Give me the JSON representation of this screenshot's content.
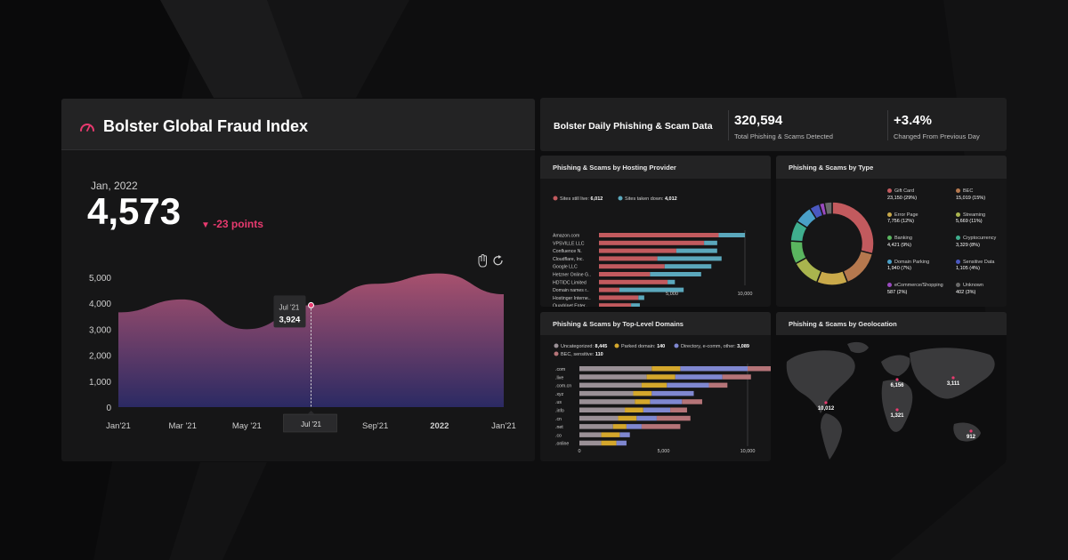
{
  "main": {
    "title": "Bolster Global Fraud Index",
    "period": "Jan, 2022",
    "value": "4,573",
    "delta": "-23 points",
    "tooltip": {
      "label": "Jul '21",
      "value": "3,924"
    },
    "cursor_label": "Jul '21"
  },
  "summary": {
    "title": "Bolster Daily Phishing & Scam Data",
    "total_value": "320,594",
    "total_label": "Total Phishing & Scams Detected",
    "change_value": "+3.4%",
    "change_label": "Changed From Previous Day"
  },
  "panels": {
    "hosting": "Phishing & Scams by Hosting Provider",
    "type": "Phishing & Scams by Type",
    "tld": "Phishing & Scams by Top-Level Domains",
    "geo": "Phishing & Scams by Geolocation"
  },
  "colors": {
    "accent": "#e83a6f",
    "live": "#c25a5e",
    "down": "#5ba8bc"
  },
  "chart_data": [
    {
      "type": "area",
      "x": [
        "Jan'21",
        "Mar '21",
        "May '21",
        "Jul '21",
        "Sep'21",
        "2022",
        "Jan'21"
      ],
      "ylim": [
        0,
        5000
      ],
      "yticks": [
        "5,000",
        "4,000",
        "3,000",
        "2,000",
        "1,000",
        "0"
      ],
      "y": [
        3650,
        4150,
        3000,
        3924,
        4750,
        5150,
        4350
      ],
      "highlight": {
        "x": "Jul '21",
        "y": 3924
      }
    },
    {
      "type": "bar",
      "legend": [
        {
          "label": "Sites still live:",
          "value": "6,012",
          "color": "#c25a5e"
        },
        {
          "label": "Sites taken down:",
          "value": "4,012",
          "color": "#5ba8bc"
        }
      ],
      "categories": [
        "Amazon.com",
        "VPSVILLE LLC",
        "Confluence N.",
        "Cloudflare, Inc.",
        "Google LLC",
        "Hetzner Online G..",
        "HDTIDC Limited",
        "Domain names r..",
        "Hostinger Interne..",
        "Quadrinet Enter.."
      ],
      "series": [
        {
          "values": [
            8200,
            7200,
            5300,
            4000,
            4500,
            3500,
            4700,
            1400,
            2700,
            2200
          ]
        },
        {
          "values": [
            1800,
            900,
            2800,
            4400,
            3200,
            3500,
            500,
            4400,
            400,
            600
          ]
        }
      ],
      "xticks": [
        "5,000",
        "10,000"
      ],
      "xlim": [
        0,
        10000
      ]
    },
    {
      "type": "pie",
      "slices": [
        {
          "label": "Gift Card",
          "value": "23,150 (29%)",
          "pct": 29,
          "color": "#c25a5e"
        },
        {
          "label": "BEC",
          "value": "15,019 (15%)",
          "pct": 15,
          "color": "#b5784e"
        },
        {
          "label": "Error Page",
          "value": "7,756 (12%)",
          "pct": 12,
          "color": "#c9a94a"
        },
        {
          "label": "Streaming",
          "value": "5,669 (11%)",
          "pct": 11,
          "color": "#a9b44e"
        },
        {
          "label": "Banking",
          "value": "4,421 (9%)",
          "pct": 9,
          "color": "#5ab55f"
        },
        {
          "label": "Cryptocurrency",
          "value": "3,329 (8%)",
          "pct": 8,
          "color": "#3fae8e"
        },
        {
          "label": "Domain Parking",
          "value": "1,940 (7%)",
          "pct": 7,
          "color": "#4aa0c8"
        },
        {
          "label": "Sensitive Data",
          "value": "1,105 (4%)",
          "pct": 4,
          "color": "#4a58c0"
        },
        {
          "label": "eCommerce/Shopping",
          "value": "587 (2%)",
          "pct": 2,
          "color": "#9a4ac0"
        },
        {
          "label": "Unknown",
          "value": "402 (3%)",
          "pct": 3,
          "color": "#6a6a6a"
        }
      ]
    },
    {
      "type": "bar",
      "legend": [
        {
          "label": "Uncategorized:",
          "value": "8,445",
          "color": "#9a9096"
        },
        {
          "label": "Parked domain:",
          "value": "140",
          "color": "#d4a72c"
        },
        {
          "label": "Directory, e-comm, other:",
          "value": "3,089",
          "color": "#7f87d0"
        },
        {
          "label": "BEC, sensitive:",
          "value": "110",
          "color": "#b57478"
        }
      ],
      "categories": [
        ".com",
        ".live",
        ".com.cn",
        ".xyz",
        ".us",
        ".info",
        ".cn",
        ".net",
        ".co",
        ".online"
      ],
      "series": [
        {
          "values": [
            4300,
            4000,
            3700,
            3200,
            3300,
            2700,
            2300,
            2000,
            1300,
            1300
          ]
        },
        {
          "values": [
            1700,
            1700,
            1500,
            1100,
            900,
            1100,
            1100,
            800,
            1100,
            900
          ]
        },
        {
          "values": [
            4000,
            2800,
            2500,
            2500,
            1900,
            1600,
            1200,
            900,
            600,
            600
          ]
        },
        {
          "values": [
            2400,
            1700,
            1100,
            0,
            1200,
            1000,
            2000,
            2300,
            0,
            0
          ]
        }
      ],
      "xticks": [
        "0",
        "5,000",
        "10,000"
      ],
      "xlim": [
        0,
        10000
      ]
    }
  ],
  "geo_labels": [
    {
      "name": "na",
      "value": "10,012"
    },
    {
      "name": "eu",
      "value": "6,156"
    },
    {
      "name": "asia",
      "value": "3,111"
    },
    {
      "name": "africa",
      "value": "1,321"
    },
    {
      "name": "aus",
      "value": "912"
    }
  ]
}
